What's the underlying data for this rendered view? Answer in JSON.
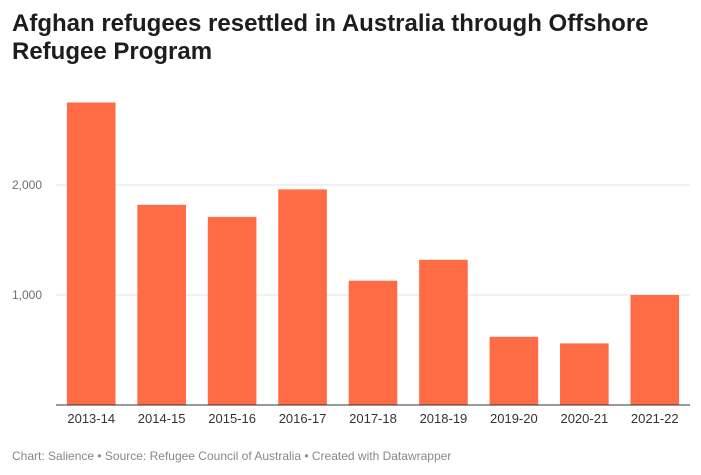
{
  "chart_data": {
    "type": "bar",
    "title": "Afghan refugees resettled in Australia through Offshore Refugee Program",
    "xlabel": "",
    "ylabel": "",
    "categories": [
      "2013-14",
      "2014-15",
      "2015-16",
      "2016-17",
      "2017-18",
      "2018-19",
      "2019-20",
      "2020-21",
      "2021-22"
    ],
    "values": [
      2750,
      1820,
      1710,
      1960,
      1130,
      1320,
      620,
      560,
      1000
    ],
    "ylim": [
      0,
      2900
    ],
    "yticks": [
      1000,
      2000
    ],
    "ytick_labels": [
      "1,000",
      "2,000"
    ],
    "grid": true,
    "bar_color": "#ff6b44",
    "footer": "Chart: Salience • Source: Refugee Council of Australia • Created with Datawrapper"
  }
}
